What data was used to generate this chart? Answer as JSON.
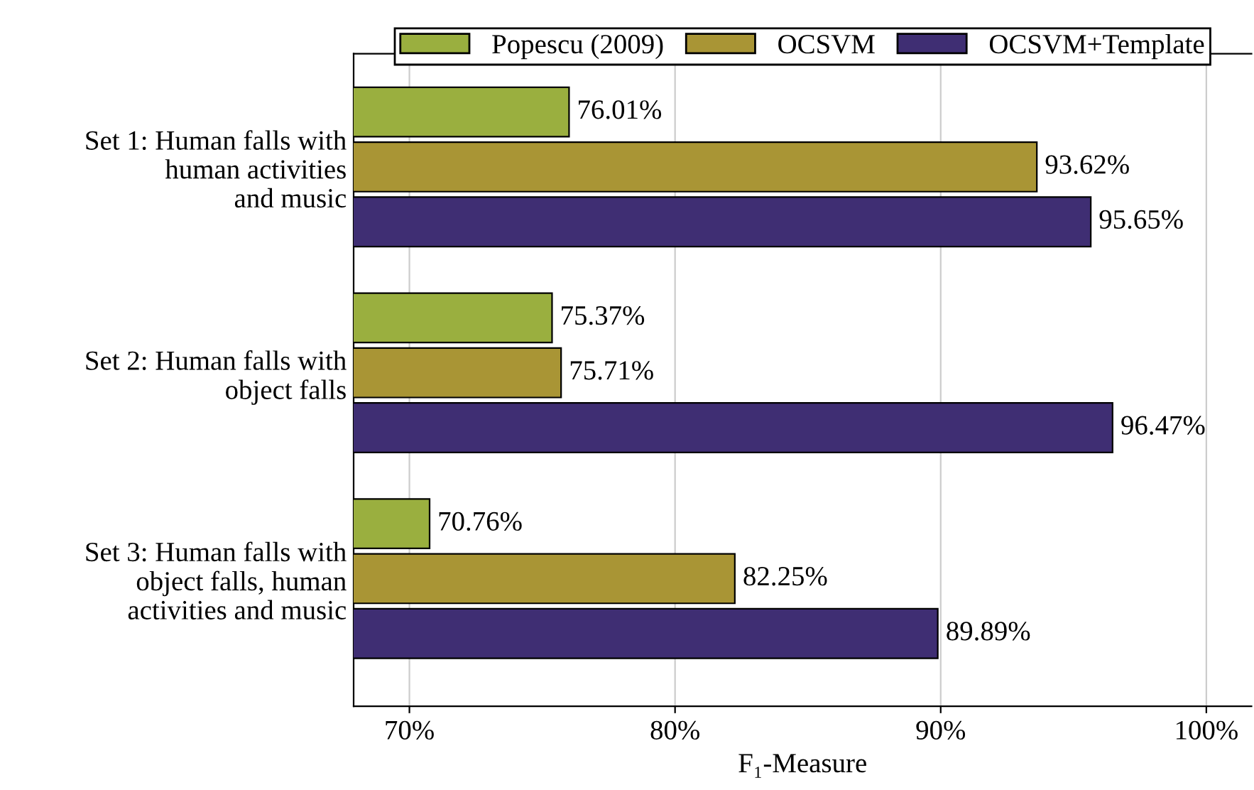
{
  "chart_data": {
    "type": "bar",
    "orientation": "horizontal",
    "xlabel": "F₁-Measure",
    "categories": [
      "Set 1: Human falls with\nhuman activities\nand music",
      "Set 2: Human falls with\nobject falls",
      "Set 3: Human falls with\nobject falls, human\nactivities and music"
    ],
    "series": [
      {
        "name": "Popescu (2009)",
        "color": "#9aaf3f",
        "values": [
          76.01,
          75.37,
          70.76
        ],
        "value_labels": [
          "76.01%",
          "75.37%",
          "70.76%"
        ]
      },
      {
        "name": "OCSVM",
        "color": "#a99535",
        "values": [
          93.62,
          75.71,
          82.25
        ],
        "value_labels": [
          "93.62%",
          "75.71%",
          "82.25%"
        ]
      },
      {
        "name": "OCSVM+Template",
        "color": "#3f2e73",
        "values": [
          95.65,
          96.47,
          89.89
        ],
        "value_labels": [
          "95.65%",
          "96.47%",
          "89.89%"
        ]
      }
    ],
    "xlim": [
      67.9,
      101.7
    ],
    "xticks": [
      {
        "value": 70,
        "label": "70%"
      },
      {
        "value": 80,
        "label": "80%"
      },
      {
        "value": 90,
        "label": "90%"
      },
      {
        "value": 100,
        "label": "100%"
      }
    ],
    "grid": "x",
    "legend": "top"
  }
}
